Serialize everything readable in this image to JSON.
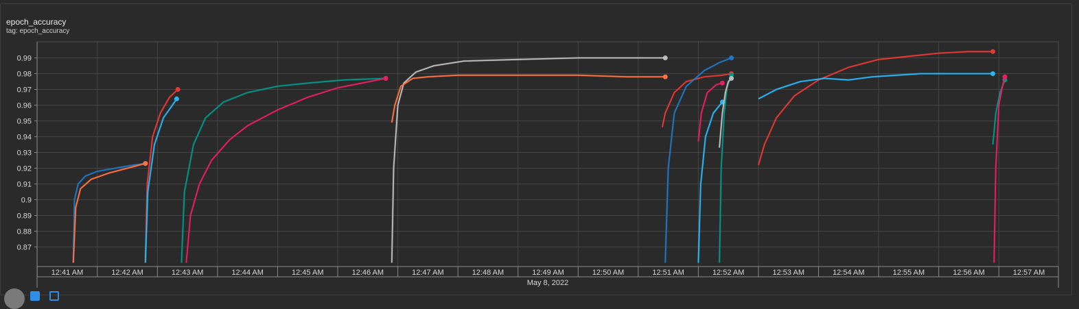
{
  "card": {
    "title": "epoch_accuracy",
    "subtitle": "tag: epoch_accuracy"
  },
  "chart_data": {
    "type": "line",
    "title": "epoch_accuracy",
    "subtitle": "tag: epoch_accuracy",
    "xlabel": "May 8, 2022",
    "ylabel": "",
    "x_axis_kind": "time",
    "xlim_minutes": [
      24.35,
      57.9
    ],
    "ylim": [
      0.861,
      0.995
    ],
    "y_ticks": [
      0.87,
      0.88,
      0.89,
      0.9,
      0.91,
      0.92,
      0.93,
      0.94,
      0.95,
      0.96,
      0.97,
      0.98,
      0.99
    ],
    "y_tick_labels": [
      "0.87",
      "0.88",
      "0.89",
      "0.9",
      "0.91",
      "0.92",
      "0.93",
      "0.94",
      "0.95",
      "0.96",
      "0.97",
      "0.98",
      "0.99"
    ],
    "x_ticks_minutes": [
      41,
      42,
      43,
      44,
      45,
      46,
      47,
      48,
      49,
      50,
      51,
      52,
      53,
      54,
      55,
      56,
      57
    ],
    "x_tick_labels": [
      "12:41 AM",
      "12:42 AM",
      "12:43 AM",
      "12:44 AM",
      "12:45 AM",
      "12:46 AM",
      "12:47 AM",
      "12:48 AM",
      "12:49 AM",
      "12:50 AM",
      "12:51 AM",
      "12:52 AM",
      "12:53 AM",
      "12:54 AM",
      "12:55 AM",
      "12:56 AM",
      "12:57 AM"
    ],
    "grid": true,
    "legend": "none",
    "series": [
      {
        "color": "#1f77c4",
        "points": [
          [
            41.1,
            0.86
          ],
          [
            41.12,
            0.9
          ],
          [
            41.18,
            0.91
          ],
          [
            41.3,
            0.915
          ],
          [
            41.5,
            0.918
          ],
          [
            41.8,
            0.92
          ],
          [
            42.1,
            0.922
          ],
          [
            42.3,
            0.923
          ]
        ]
      },
      {
        "color": "#ff7043",
        "points": [
          [
            41.1,
            0.86
          ],
          [
            41.14,
            0.895
          ],
          [
            41.22,
            0.907
          ],
          [
            41.4,
            0.913
          ],
          [
            41.7,
            0.917
          ],
          [
            42.0,
            0.92
          ],
          [
            42.3,
            0.923
          ]
        ]
      },
      {
        "color": "#e53935",
        "points": [
          [
            42.3,
            0.86
          ],
          [
            42.33,
            0.91
          ],
          [
            42.42,
            0.94
          ],
          [
            42.55,
            0.955
          ],
          [
            42.7,
            0.965
          ],
          [
            42.84,
            0.97
          ]
        ]
      },
      {
        "color": "#29b6f6",
        "points": [
          [
            42.3,
            0.86
          ],
          [
            42.34,
            0.905
          ],
          [
            42.45,
            0.935
          ],
          [
            42.6,
            0.952
          ],
          [
            42.75,
            0.96
          ],
          [
            42.82,
            0.964
          ]
        ]
      },
      {
        "color": "#009688",
        "points": [
          [
            42.9,
            0.86
          ],
          [
            42.95,
            0.905
          ],
          [
            43.1,
            0.935
          ],
          [
            43.3,
            0.952
          ],
          [
            43.6,
            0.962
          ],
          [
            44.0,
            0.968
          ],
          [
            44.5,
            0.972
          ],
          [
            45.0,
            0.974
          ],
          [
            45.6,
            0.976
          ],
          [
            46.3,
            0.977
          ]
        ]
      },
      {
        "color": "#e91e63",
        "points": [
          [
            42.98,
            0.86
          ],
          [
            43.05,
            0.89
          ],
          [
            43.2,
            0.91
          ],
          [
            43.4,
            0.925
          ],
          [
            43.7,
            0.938
          ],
          [
            44.0,
            0.947
          ],
          [
            44.5,
            0.957
          ],
          [
            45.0,
            0.965
          ],
          [
            45.5,
            0.971
          ],
          [
            46.3,
            0.977
          ]
        ]
      },
      {
        "color": "#bdbdbd",
        "points": [
          [
            46.4,
            0.86
          ],
          [
            46.43,
            0.92
          ],
          [
            46.5,
            0.96
          ],
          [
            46.6,
            0.974
          ],
          [
            46.8,
            0.981
          ],
          [
            47.1,
            0.985
          ],
          [
            47.6,
            0.988
          ],
          [
            48.5,
            0.989
          ],
          [
            49.5,
            0.99
          ],
          [
            50.3,
            0.99
          ],
          [
            50.95,
            0.99
          ]
        ]
      },
      {
        "color": "#ff7043",
        "points": [
          [
            46.4,
            0.949
          ],
          [
            46.45,
            0.96
          ],
          [
            46.55,
            0.972
          ],
          [
            46.75,
            0.977
          ],
          [
            47.0,
            0.978
          ],
          [
            47.5,
            0.979
          ],
          [
            48.5,
            0.979
          ],
          [
            49.5,
            0.979
          ],
          [
            50.3,
            0.978
          ],
          [
            50.95,
            0.978
          ]
        ]
      },
      {
        "color": "#e53935",
        "points": [
          [
            50.9,
            0.946
          ],
          [
            50.95,
            0.955
          ],
          [
            51.1,
            0.968
          ],
          [
            51.3,
            0.975
          ],
          [
            51.6,
            0.978
          ],
          [
            51.9,
            0.979
          ],
          [
            52.05,
            0.98
          ]
        ]
      },
      {
        "color": "#1f77c4",
        "points": [
          [
            50.95,
            0.86
          ],
          [
            51.0,
            0.92
          ],
          [
            51.1,
            0.955
          ],
          [
            51.3,
            0.972
          ],
          [
            51.6,
            0.982
          ],
          [
            51.85,
            0.987
          ],
          [
            52.05,
            0.99
          ]
        ]
      },
      {
        "color": "#29b6f6",
        "points": [
          [
            51.5,
            0.86
          ],
          [
            51.54,
            0.91
          ],
          [
            51.62,
            0.94
          ],
          [
            51.75,
            0.955
          ],
          [
            51.9,
            0.962
          ]
        ]
      },
      {
        "color": "#e91e63",
        "points": [
          [
            51.5,
            0.937
          ],
          [
            51.55,
            0.955
          ],
          [
            51.65,
            0.968
          ],
          [
            51.8,
            0.973
          ],
          [
            51.9,
            0.974
          ]
        ]
      },
      {
        "color": "#009688",
        "points": [
          [
            51.85,
            0.86
          ],
          [
            51.88,
            0.92
          ],
          [
            51.93,
            0.955
          ],
          [
            51.98,
            0.972
          ],
          [
            52.05,
            0.979
          ]
        ]
      },
      {
        "color": "#bdbdbd",
        "points": [
          [
            51.85,
            0.933
          ],
          [
            51.9,
            0.955
          ],
          [
            51.95,
            0.968
          ],
          [
            52.0,
            0.975
          ],
          [
            52.05,
            0.977
          ]
        ]
      },
      {
        "color": "#e53935",
        "points": [
          [
            52.5,
            0.922
          ],
          [
            52.6,
            0.935
          ],
          [
            52.8,
            0.952
          ],
          [
            53.1,
            0.966
          ],
          [
            53.5,
            0.976
          ],
          [
            54.0,
            0.984
          ],
          [
            54.5,
            0.989
          ],
          [
            55.0,
            0.991
          ],
          [
            55.5,
            0.993
          ],
          [
            56.0,
            0.994
          ],
          [
            56.4,
            0.994
          ]
        ]
      },
      {
        "color": "#29b6f6",
        "points": [
          [
            52.5,
            0.964
          ],
          [
            52.8,
            0.97
          ],
          [
            53.2,
            0.975
          ],
          [
            53.6,
            0.977
          ],
          [
            54.0,
            0.976
          ],
          [
            54.4,
            0.978
          ],
          [
            54.8,
            0.979
          ],
          [
            55.2,
            0.98
          ],
          [
            55.6,
            0.98
          ],
          [
            56.0,
            0.98
          ],
          [
            56.4,
            0.98
          ]
        ]
      },
      {
        "color": "#009688",
        "points": [
          [
            56.4,
            0.935
          ],
          [
            56.45,
            0.955
          ],
          [
            56.52,
            0.968
          ],
          [
            56.6,
            0.976
          ]
        ]
      },
      {
        "color": "#e91e63",
        "points": [
          [
            56.42,
            0.86
          ],
          [
            56.45,
            0.92
          ],
          [
            56.5,
            0.96
          ],
          [
            56.56,
            0.972
          ],
          [
            56.6,
            0.978
          ]
        ]
      }
    ]
  }
}
